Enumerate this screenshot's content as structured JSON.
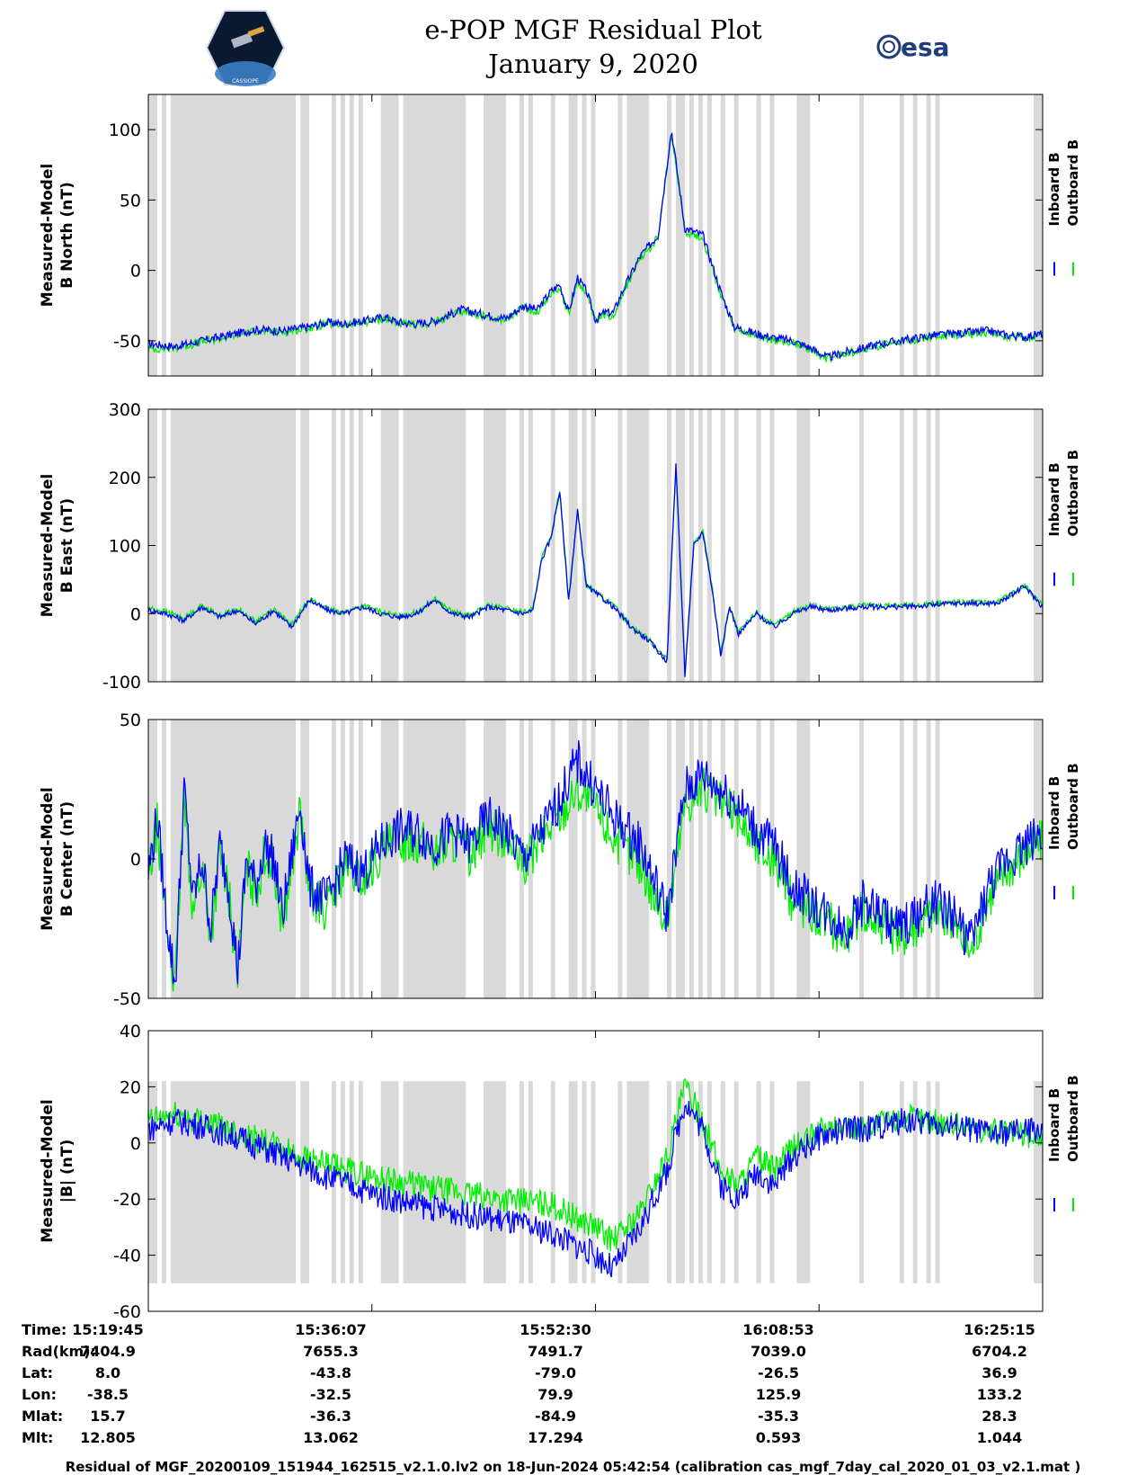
{
  "header": {
    "title_line1": "e-POP MGF Residual Plot",
    "title_line2": "January 9, 2020",
    "logo_left_text": "CASSIOPE",
    "logo_right_text": "esa"
  },
  "colors": {
    "inboard": "#0000ff",
    "outboard": "#00ee00",
    "shade": "#d9d9d9",
    "axis": "#000000"
  },
  "chart_data": [
    {
      "type": "line",
      "ylabel": [
        "Measured-Model",
        "B North (nT)"
      ],
      "ylim": [
        -75,
        125
      ],
      "yticks": [
        -50,
        0,
        50,
        100
      ],
      "ytick_labels": [
        "-50",
        "0",
        "50",
        "100"
      ],
      "legend": [
        "Inboard B",
        "Outboard B"
      ],
      "x": [
        0,
        3,
        6,
        9,
        12,
        15,
        18,
        20,
        22,
        25,
        26.5,
        28,
        30,
        32,
        35,
        38,
        40,
        42,
        43.5,
        45,
        46,
        47,
        48,
        49,
        50,
        51,
        52,
        53,
        55,
        57,
        58.5,
        60,
        62,
        64,
        65.5,
        68,
        70,
        72,
        74,
        76,
        78,
        80,
        82,
        84,
        86,
        88,
        90,
        92,
        94,
        96,
        98,
        100
      ],
      "series": [
        {
          "name": "Inboard B",
          "values": [
            -52,
            -54,
            -50,
            -46,
            -42,
            -43,
            -40,
            -37,
            -38,
            -35,
            -33,
            -37,
            -38,
            -36,
            -28,
            -32,
            -34,
            -25,
            -28,
            -15,
            -10,
            -30,
            -5,
            -15,
            -35,
            -30,
            -30,
            -15,
            10,
            25,
            100,
            30,
            25,
            -15,
            -40,
            -45,
            -48,
            -50,
            -55,
            -62,
            -58,
            -55,
            -52,
            -50,
            -48,
            -46,
            -45,
            -44,
            -43,
            -46,
            -47,
            -45
          ]
        },
        {
          "name": "Outboard B",
          "values": [
            -56,
            -55,
            -51,
            -47,
            -43,
            -44,
            -41,
            -38,
            -39,
            -36,
            -34,
            -38,
            -39,
            -37,
            -29,
            -33,
            -35,
            -26,
            -30,
            -17,
            -12,
            -32,
            -7,
            -17,
            -37,
            -32,
            -32,
            -17,
            8,
            23,
            98,
            28,
            23,
            -17,
            -42,
            -47,
            -50,
            -51,
            -56,
            -63,
            -59,
            -56,
            -53,
            -51,
            -49,
            -47,
            -46,
            -45,
            -44,
            -47,
            -48,
            -46
          ]
        }
      ]
    },
    {
      "type": "line",
      "ylabel": [
        "Measured-Model",
        "B East (nT)"
      ],
      "ylim": [
        -100,
        300
      ],
      "yticks": [
        -100,
        0,
        100,
        200,
        300
      ],
      "ytick_labels": [
        "-100",
        "0",
        "100",
        "200",
        "300"
      ],
      "legend": [
        "Inboard B",
        "Outboard B"
      ],
      "x": [
        0,
        2,
        4,
        6,
        8,
        10,
        12,
        14,
        16,
        18,
        20,
        22,
        24,
        26,
        28,
        30,
        32,
        34,
        36,
        38,
        40,
        42,
        43,
        44,
        45,
        46,
        47,
        48,
        49,
        50,
        52,
        54,
        56,
        58,
        59,
        60,
        61,
        62,
        63,
        64,
        65,
        66,
        68,
        70,
        72,
        74,
        76,
        80,
        85,
        90,
        95,
        98,
        100
      ],
      "series": [
        {
          "name": "Inboard B",
          "values": [
            5,
            0,
            -10,
            10,
            -5,
            5,
            -15,
            5,
            -20,
            20,
            5,
            0,
            10,
            0,
            -5,
            0,
            20,
            0,
            -5,
            10,
            5,
            0,
            5,
            80,
            110,
            180,
            20,
            150,
            40,
            30,
            10,
            -20,
            -40,
            -70,
            220,
            -90,
            100,
            120,
            40,
            -60,
            10,
            -30,
            0,
            -20,
            0,
            10,
            5,
            10,
            10,
            15,
            15,
            40,
            10
          ]
        },
        {
          "name": "Outboard B",
          "values": [
            8,
            3,
            -7,
            12,
            -3,
            7,
            -12,
            7,
            -17,
            22,
            7,
            2,
            12,
            2,
            -3,
            2,
            22,
            2,
            -3,
            12,
            7,
            2,
            7,
            82,
            112,
            182,
            22,
            152,
            42,
            32,
            12,
            -18,
            -38,
            -68,
            218,
            -88,
            102,
            122,
            42,
            -58,
            12,
            -28,
            2,
            -18,
            2,
            12,
            7,
            12,
            12,
            17,
            17,
            42,
            12
          ]
        }
      ]
    },
    {
      "type": "line",
      "ylabel": [
        "Measured-Model",
        "B Center (nT)"
      ],
      "ylim": [
        -50,
        50
      ],
      "yticks": [
        -50,
        0,
        50
      ],
      "ytick_labels": [
        "-50",
        "0",
        "50"
      ],
      "legend": [
        "Inboard B",
        "Outboard B"
      ],
      "x": [
        0,
        1,
        2,
        3,
        4,
        5,
        6,
        7,
        8,
        9,
        10,
        11,
        12,
        13,
        14,
        15,
        16,
        17,
        18,
        20,
        22,
        24,
        26,
        28,
        30,
        32,
        34,
        36,
        38,
        40,
        42,
        45,
        48,
        50,
        52,
        55,
        58,
        60,
        62,
        64,
        66,
        68,
        70,
        72,
        74,
        76,
        78,
        80,
        82,
        84,
        86,
        88,
        90,
        92,
        94,
        96,
        98,
        100
      ],
      "series": [
        {
          "name": "Inboard B",
          "values": [
            -5,
            15,
            -20,
            -45,
            25,
            -15,
            0,
            -25,
            5,
            -10,
            -40,
            0,
            -10,
            5,
            0,
            -20,
            0,
            20,
            -10,
            -15,
            0,
            -5,
            5,
            10,
            10,
            5,
            10,
            5,
            15,
            10,
            0,
            15,
            35,
            25,
            15,
            5,
            -20,
            25,
            30,
            25,
            20,
            10,
            5,
            -10,
            -15,
            -20,
            -25,
            -15,
            -20,
            -25,
            -20,
            -15,
            -20,
            -30,
            -10,
            0,
            5,
            10
          ]
        },
        {
          "name": "Outboard B",
          "values": [
            -8,
            12,
            -23,
            -46,
            22,
            -18,
            -3,
            -28,
            2,
            -13,
            -41,
            -3,
            -13,
            2,
            -3,
            -23,
            -3,
            17,
            -13,
            -18,
            -3,
            -8,
            2,
            7,
            7,
            2,
            7,
            2,
            12,
            7,
            -3,
            12,
            25,
            18,
            8,
            -2,
            -23,
            20,
            25,
            20,
            15,
            5,
            0,
            -15,
            -18,
            -23,
            -28,
            -18,
            -23,
            -28,
            -23,
            -18,
            -23,
            -33,
            -13,
            -3,
            2,
            7
          ]
        }
      ]
    },
    {
      "type": "line",
      "ylabel": [
        "Measured-Model",
        "|B| (nT)"
      ],
      "ylim": [
        -60,
        40
      ],
      "yticks": [
        -60,
        -40,
        -20,
        0,
        20,
        40
      ],
      "ytick_labels": [
        "-60",
        "-40",
        "-20",
        "0",
        "20",
        "40"
      ],
      "legend": [
        "Inboard B",
        "Outboard B"
      ],
      "x": [
        0,
        3,
        6,
        10,
        15,
        20,
        25,
        30,
        35,
        40,
        45,
        50,
        52,
        55,
        58,
        60,
        62,
        64,
        66,
        68,
        70,
        72,
        75,
        78,
        80,
        85,
        90,
        95,
        100
      ],
      "series": [
        {
          "name": "Inboard B",
          "values": [
            5,
            8,
            6,
            2,
            -5,
            -12,
            -18,
            -22,
            -25,
            -28,
            -32,
            -40,
            -45,
            -30,
            -10,
            15,
            5,
            -15,
            -20,
            -10,
            -15,
            -5,
            2,
            5,
            5,
            8,
            6,
            3,
            5
          ]
        },
        {
          "name": "Outboard B",
          "values": [
            8,
            10,
            8,
            4,
            -2,
            -8,
            -12,
            -15,
            -18,
            -20,
            -22,
            -30,
            -35,
            -25,
            -5,
            20,
            8,
            -10,
            -15,
            -5,
            -10,
            -2,
            4,
            6,
            6,
            9,
            7,
            4,
            2
          ]
        }
      ]
    }
  ],
  "shaded_intervals": [
    [
      0,
      1
    ],
    [
      1.5,
      2
    ],
    [
      2.5,
      16.5
    ],
    [
      17,
      18
    ],
    [
      20.5,
      21
    ],
    [
      21.5,
      22
    ],
    [
      22.5,
      23
    ],
    [
      23.5,
      24
    ],
    [
      26,
      28
    ],
    [
      28.5,
      35.5
    ],
    [
      37.5,
      40
    ],
    [
      41.5,
      42
    ],
    [
      42.5,
      43
    ],
    [
      45,
      45.5
    ],
    [
      47,
      48
    ],
    [
      48.5,
      49
    ],
    [
      49.5,
      50
    ],
    [
      52.5,
      53
    ],
    [
      53.5,
      56
    ],
    [
      58,
      58.5
    ],
    [
      59,
      60
    ],
    [
      60.5,
      61
    ],
    [
      61.5,
      62
    ],
    [
      62.5,
      63
    ],
    [
      64,
      64.5
    ],
    [
      65.5,
      66
    ],
    [
      68,
      68.5
    ],
    [
      69.5,
      70
    ],
    [
      72.5,
      74
    ],
    [
      79.5,
      80
    ],
    [
      84,
      84.5
    ],
    [
      85.5,
      86
    ],
    [
      87,
      87.5
    ],
    [
      88,
      88.5
    ],
    [
      99,
      100
    ]
  ],
  "info_table": {
    "labels": [
      "Time:",
      "Rad(km):",
      "Lat:",
      "Lon:",
      "Mlat:",
      "Mlt:"
    ],
    "columns": [
      [
        "15:19:45",
        "7404.9",
        "8.0",
        "-38.5",
        "15.7",
        "12.805"
      ],
      [
        "15:36:07",
        "7655.3",
        "-43.8",
        "-32.5",
        "-36.3",
        "13.062"
      ],
      [
        "15:52:30",
        "7491.7",
        "-79.0",
        "79.9",
        "-84.9",
        "17.294"
      ],
      [
        "16:08:53",
        "7039.0",
        "-26.5",
        "125.9",
        "-35.3",
        "0.593"
      ],
      [
        "16:25:15",
        "6704.2",
        "36.9",
        "133.2",
        "28.3",
        "1.044"
      ]
    ]
  },
  "footer": "Residual of MGF_20200109_151944_162515_v2.1.0.lv2 on 18-Jun-2024 05:42:54 (calibration cas_mgf_7day_cal_2020_01_03_v2.1.mat )"
}
